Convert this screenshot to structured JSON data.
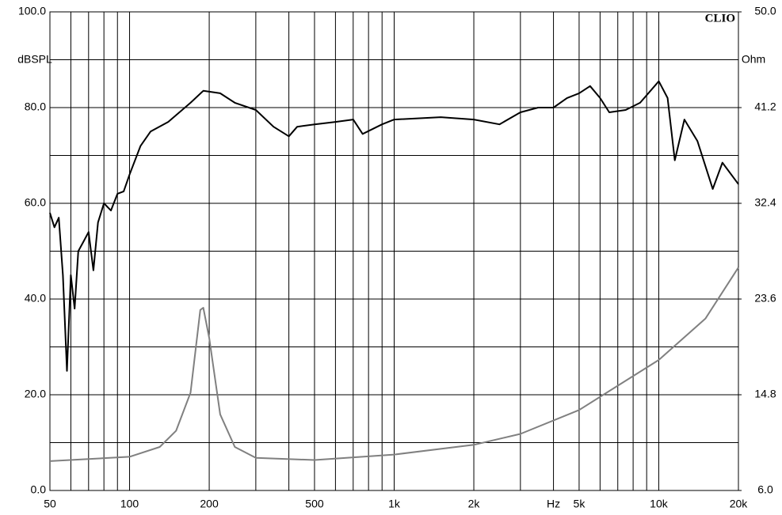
{
  "chart_data": {
    "type": "line",
    "brand": "CLIO",
    "ylabel": "dBSPL",
    "y2label": "Ohm",
    "xscale": "log",
    "grid": true,
    "xlim": [
      50,
      20000
    ],
    "xticks": [
      50,
      100,
      200,
      500,
      {
        "value": 1000,
        "label": "1k"
      },
      {
        "value": 2000,
        "label": "2k"
      },
      {
        "value": 4000,
        "label": "Hz"
      },
      {
        "value": 5000,
        "label": "5k"
      },
      {
        "value": 10000,
        "label": "10k"
      },
      {
        "value": 20000,
        "label": "20k"
      }
    ],
    "xminor_ticks": [
      60,
      70,
      80,
      90,
      300,
      400,
      600,
      700,
      800,
      900,
      3000,
      6000,
      7000,
      8000,
      9000
    ],
    "ylim": [
      0,
      100
    ],
    "yticks": [
      {
        "value": 0,
        "label": "0.0"
      },
      {
        "value": 20,
        "label": "20.0"
      },
      {
        "value": 40,
        "label": "40.0"
      },
      {
        "value": 60,
        "label": "60.0"
      },
      {
        "value": 80,
        "label": "80.0"
      },
      {
        "value": 100,
        "label": "100.0"
      }
    ],
    "yminor_ticks": [
      10,
      30,
      50,
      70,
      90
    ],
    "y2lim": [
      6,
      50
    ],
    "y2ticks": [
      {
        "value": 6,
        "label": "6.0"
      },
      14.8,
      23.6,
      32.4,
      41.2,
      {
        "value": 50,
        "label": "50.0"
      }
    ],
    "series": [
      {
        "color": "#000000",
        "x": [
          50,
          52,
          54,
          56,
          58,
          60,
          62,
          64,
          67,
          70,
          73,
          76,
          80,
          85,
          90,
          95,
          100,
          110,
          120,
          140,
          170,
          190,
          220,
          250,
          300,
          350,
          400,
          430,
          500,
          600,
          700,
          760,
          900,
          1000,
          1500,
          2000,
          2500,
          3000,
          3500,
          4000,
          4500,
          5000,
          5500,
          6000,
          6500,
          7500,
          8500,
          10000,
          10800,
          11500,
          12500,
          14000,
          16000,
          17400,
          20000
        ],
        "values": [
          58,
          55,
          57,
          45,
          25,
          45,
          38,
          50,
          52,
          54,
          46,
          56,
          60,
          58.5,
          62,
          62.5,
          66,
          72,
          75,
          77,
          81,
          83.5,
          83,
          81,
          79.5,
          76,
          74,
          76,
          76.5,
          77,
          77.5,
          74.5,
          76.5,
          77.5,
          78,
          77.5,
          76.5,
          79,
          80,
          80,
          82,
          83,
          84.5,
          82,
          79,
          79.5,
          81,
          85.5,
          82,
          69,
          77.5,
          73,
          63,
          68.5,
          64
        ]
      },
      {
        "color": "#808080",
        "axis": "y2",
        "x": [
          50,
          100,
          130,
          150,
          170,
          185,
          190,
          200,
          220,
          250,
          300,
          500,
          1000,
          2000,
          3000,
          5000,
          10000,
          15000,
          20000
        ],
        "values": [
          8.7,
          9.1,
          10,
          11.5,
          15,
          22.6,
          22.8,
          20,
          13,
          10,
          9,
          8.8,
          9.3,
          10.2,
          11.2,
          13.4,
          18,
          21.8,
          26.5
        ]
      }
    ]
  }
}
